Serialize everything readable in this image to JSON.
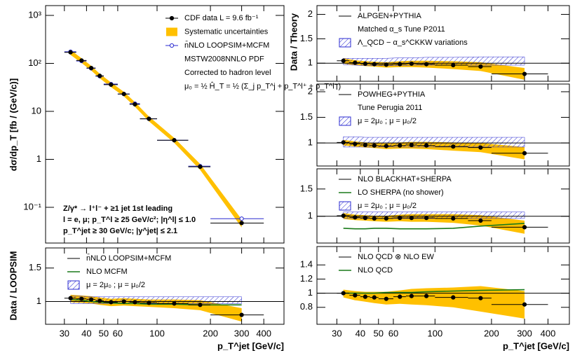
{
  "x_axis": {
    "label": "p_T^jet  [GeV/c]",
    "xlim": [
      23.5,
      520
    ],
    "xticks": [
      30,
      40,
      50,
      60,
      100,
      200,
      300,
      400
    ],
    "x": [
      32.5,
      37.5,
      42.5,
      47.5,
      55,
      65,
      75,
      90,
      125,
      175,
      300
    ],
    "x_low": [
      30,
      35,
      40,
      45,
      50,
      60,
      70,
      80,
      100,
      150,
      200
    ],
    "x_high": [
      35,
      40,
      45,
      50,
      60,
      70,
      80,
      100,
      150,
      200,
      400
    ]
  },
  "chart_data": [
    {
      "type": "scatter",
      "log_y": true,
      "ylabel": "dσ/dp_T  [fb / (GeV/c)]",
      "ylim": [
        0.018,
        1600
      ],
      "yticks": [
        {
          "value": 1000,
          "label": "10³"
        },
        {
          "value": 100,
          "label": "10²"
        },
        10,
        1,
        {
          "value": 0.1,
          "label": "10⁻¹"
        }
      ],
      "annotations": [
        "Z/γ* → l⁺l⁻ + ≥1 jet 1st leading",
        "l = e, μ;  p_T^l ≥ 25 GeV/c²; |η^l| ≤ 1.0",
        "p_T^jet ≥ 30 GeV/c; |y^jet| ≤ 2.1"
      ],
      "series": [
        {
          "name": "CDF data  L = 9.6 fb⁻¹",
          "style": "points",
          "color": "#000000",
          "values": [
            170,
            115,
            80,
            55,
            36,
            23,
            14,
            7,
            2.5,
            0.7,
            0.047
          ]
        },
        {
          "name": "Systematic uncertainties",
          "style": "band",
          "color": "#ffc000",
          "low": [
            150,
            102,
            71,
            49,
            32,
            20.5,
            12.5,
            6.2,
            2.2,
            0.6,
            0.038
          ],
          "high": [
            190,
            128,
            89,
            61,
            40,
            25.5,
            15.6,
            7.8,
            2.8,
            0.8,
            0.056
          ]
        },
        {
          "name": "n̄NLO LOOPSIM+MCFM",
          "style": "open",
          "color": "#2a2ad0",
          "note": [
            "MSTW2008NNLO PDF",
            "Corrected to hadron level",
            "μ₀ = ½ Ĥ_T = ½ (Σ_j p_T^j + p_T^l⁺ + p_T^l⁻)"
          ],
          "values": [
            175,
            112,
            79,
            54,
            37,
            23,
            14.5,
            7,
            2.5,
            0.72,
            0.058
          ]
        }
      ]
    },
    {
      "type": "scatter",
      "ylabel": "Data / LOOPSIM",
      "bottom": true,
      "ylim": [
        0.66,
        1.8
      ],
      "yticks": [
        1,
        1.5
      ],
      "series": [
        {
          "name": "n̄NLO LOOPSIM+MCFM",
          "style": "ref",
          "color": "#000000",
          "value": 1
        },
        {
          "name": "NLO MCFM",
          "style": "line",
          "color": "#1a7a1a",
          "values": [
            1.03,
            1.02,
            1.0,
            0.99,
            0.98,
            0.97,
            0.97,
            0.96,
            0.96,
            0.95,
            0.95
          ]
        },
        {
          "name": "μ = 2μ₀ ; μ = μ₀/2",
          "style": "hatch",
          "color": "#2a2ad0",
          "low": [
            0.97,
            0.97,
            0.97,
            0.97,
            0.97,
            0.97,
            0.97,
            0.97,
            0.97,
            0.97,
            0.97
          ],
          "high": [
            1.08,
            1.08,
            1.07,
            1.07,
            1.07,
            1.07,
            1.07,
            1.07,
            1.07,
            1.07,
            1.07
          ]
        },
        {
          "style": "band",
          "color": "#ffc000",
          "low": [
            0.99,
            0.98,
            0.97,
            0.95,
            0.93,
            0.94,
            0.93,
            0.92,
            0.9,
            0.87,
            0.7
          ],
          "high": [
            1.1,
            1.09,
            1.08,
            1.06,
            1.04,
            1.05,
            1.04,
            1.03,
            1.03,
            1.02,
            0.9
          ]
        },
        {
          "style": "points",
          "color": "#000000",
          "values": [
            1.05,
            1.04,
            1.03,
            1.01,
            0.99,
            1.0,
            0.99,
            0.98,
            0.97,
            0.95,
            0.8
          ]
        }
      ]
    },
    {
      "type": "scatter",
      "ylabel": "Data / Theory",
      "ylim": [
        0.63,
        2.18
      ],
      "yticks": [
        1,
        1.5,
        2
      ],
      "series": [
        {
          "name": "ALPGEN+PYTHIA",
          "style": "ref",
          "color": "#000000",
          "value": 1,
          "note": [
            "Matched α_s Tune P2011"
          ]
        },
        {
          "name": "Λ_QCD − α_s^CKKW variations",
          "style": "hatch",
          "color": "#2a2ad0",
          "low": [
            0.97,
            0.96,
            0.95,
            0.95,
            0.95,
            0.95,
            0.96,
            0.96,
            0.96,
            0.96,
            0.96
          ],
          "high": [
            1.1,
            1.1,
            1.1,
            1.1,
            1.1,
            1.11,
            1.11,
            1.12,
            1.12,
            1.13,
            1.13
          ]
        },
        {
          "style": "band",
          "color": "#ffc000",
          "low": [
            0.99,
            0.96,
            0.94,
            0.93,
            0.91,
            0.92,
            0.92,
            0.91,
            0.88,
            0.84,
            0.66
          ],
          "high": [
            1.1,
            1.06,
            1.04,
            1.03,
            1.02,
            1.04,
            1.05,
            1.05,
            1.04,
            1.02,
            0.9
          ]
        },
        {
          "style": "points",
          "color": "#000000",
          "values": [
            1.05,
            1.01,
            0.99,
            0.98,
            0.97,
            0.98,
            0.99,
            0.98,
            0.96,
            0.93,
            0.78
          ]
        }
      ]
    },
    {
      "type": "scatter",
      "ylim": [
        0.55,
        2.15
      ],
      "yticks": [
        1,
        1.5,
        2
      ],
      "series": [
        {
          "name": "POWHEG+PYTHIA",
          "style": "ref",
          "color": "#000000",
          "value": 1,
          "note": [
            "Tune Perugia 2011"
          ]
        },
        {
          "name": "μ = 2μ₀ ; μ = μ₀/2",
          "style": "hatch",
          "color": "#2a2ad0",
          "low": [
            0.92,
            0.92,
            0.92,
            0.92,
            0.92,
            0.92,
            0.92,
            0.92,
            0.92,
            0.92,
            0.92
          ],
          "high": [
            1.12,
            1.12,
            1.11,
            1.11,
            1.11,
            1.11,
            1.11,
            1.11,
            1.11,
            1.11,
            1.11
          ]
        },
        {
          "style": "band",
          "color": "#ffc000",
          "low": [
            0.95,
            0.93,
            0.91,
            0.9,
            0.88,
            0.89,
            0.89,
            0.88,
            0.85,
            0.82,
            0.68
          ],
          "high": [
            1.06,
            1.03,
            1.01,
            1.0,
            0.99,
            1.01,
            1.02,
            1.02,
            1.01,
            1.0,
            0.92
          ]
        },
        {
          "style": "points",
          "color": "#000000",
          "values": [
            1.01,
            0.98,
            0.96,
            0.95,
            0.94,
            0.95,
            0.96,
            0.95,
            0.93,
            0.91,
            0.8
          ]
        }
      ]
    },
    {
      "type": "scatter",
      "ylim": [
        0.51,
        1.87
      ],
      "yticks": [
        1,
        1.5
      ],
      "series": [
        {
          "name": "NLO BLACKHAT+SHERPA",
          "style": "ref",
          "color": "#000000",
          "value": 1
        },
        {
          "name": "LO SHERPA (no shower)",
          "style": "line",
          "color": "#1a7a1a",
          "values": [
            0.78,
            0.77,
            0.77,
            0.78,
            0.78,
            0.77,
            0.77,
            0.77,
            0.78,
            0.82,
            0.87
          ]
        },
        {
          "name": "μ = 2μ₀ ; μ = μ₀/2",
          "style": "hatch",
          "color": "#2a2ad0",
          "low": [
            0.96,
            0.96,
            0.96,
            0.96,
            0.96,
            0.96,
            0.96,
            0.96,
            0.96,
            0.96,
            0.96
          ],
          "high": [
            1.08,
            1.08,
            1.08,
            1.08,
            1.08,
            1.08,
            1.08,
            1.08,
            1.08,
            1.08,
            1.08
          ]
        },
        {
          "style": "band",
          "color": "#ffc000",
          "low": [
            0.95,
            0.93,
            0.92,
            0.91,
            0.9,
            0.91,
            0.9,
            0.9,
            0.88,
            0.83,
            0.68
          ],
          "high": [
            1.06,
            1.03,
            1.02,
            1.01,
            1.01,
            1.03,
            1.04,
            1.04,
            1.04,
            1.02,
            0.92
          ]
        },
        {
          "style": "points",
          "color": "#000000",
          "values": [
            1.01,
            0.98,
            0.97,
            0.96,
            0.96,
            0.97,
            0.97,
            0.97,
            0.96,
            0.92,
            0.8
          ]
        }
      ]
    },
    {
      "type": "scatter",
      "bottom": true,
      "ylim": [
        0.56,
        1.66
      ],
      "yticks": [
        0.8,
        1,
        1.2,
        1.4
      ],
      "series": [
        {
          "name": "NLO QCD ⊗ NLO EW",
          "style": "ref",
          "color": "#000000",
          "value": 1
        },
        {
          "name": "NLO QCD",
          "style": "line",
          "color": "#1a7a1a",
          "values": [
            1.0,
            1.0,
            1.0,
            1.0,
            1.01,
            1.01,
            1.01,
            1.02,
            1.03,
            1.04,
            1.05
          ]
        },
        {
          "style": "band",
          "color": "#ffc000",
          "low": [
            0.94,
            0.9,
            0.88,
            0.86,
            0.84,
            0.85,
            0.84,
            0.83,
            0.8,
            0.74,
            0.64
          ],
          "high": [
            1.05,
            1.03,
            1.02,
            1.02,
            1.02,
            1.04,
            1.06,
            1.07,
            1.08,
            1.1,
            1.03
          ]
        },
        {
          "style": "points",
          "color": "#000000",
          "values": [
            1.0,
            0.97,
            0.95,
            0.94,
            0.92,
            0.95,
            0.96,
            0.96,
            0.94,
            0.93,
            0.84
          ]
        }
      ]
    }
  ]
}
